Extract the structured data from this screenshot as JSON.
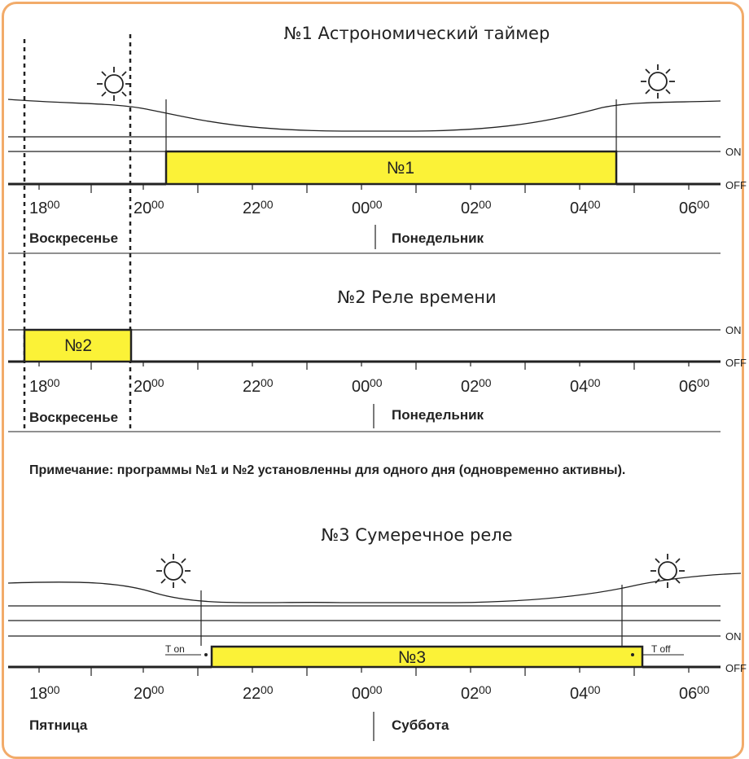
{
  "colors": {
    "frame": "#f2ab6a",
    "relay_on": "#fbf237",
    "line": "#222222"
  },
  "icons": {
    "sun": "sun-icon",
    "moon": "moon-icon"
  },
  "levels": {
    "on": "ON",
    "off": "OFF"
  },
  "time_ticks": [
    {
      "hour": "18",
      "min": "00"
    },
    {
      "hour": "20",
      "min": "00"
    },
    {
      "hour": "22",
      "min": "00"
    },
    {
      "hour": "00",
      "min": "00"
    },
    {
      "hour": "02",
      "min": "00"
    },
    {
      "hour": "04",
      "min": "00"
    },
    {
      "hour": "06",
      "min": "00"
    }
  ],
  "panel1": {
    "title": "№1   Астрономический таймер",
    "box_label": "№1",
    "day_left": "Воскресенье",
    "day_right": "Понедельник"
  },
  "panel2": {
    "title": "№2   Реле времени",
    "box_label": "№2",
    "day_left": "Воскресенье",
    "day_right": "Понедельник"
  },
  "note": "Примечание: программы №1 и №2 установленны для одного дня (одновременно активны).",
  "panel3": {
    "title": "№3   Сумеречное реле",
    "box_label": "№3",
    "day_left": "Пятница",
    "day_right": "Суббота",
    "t_on": "T on",
    "t_off": "T off"
  }
}
